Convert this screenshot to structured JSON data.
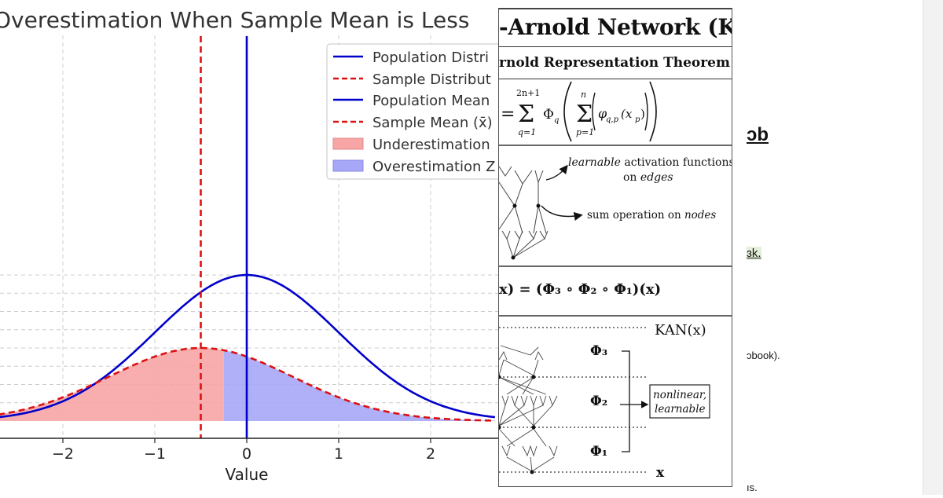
{
  "chart": {
    "title": "Overestimation When Sample Mean is Less",
    "xlabel": "Value",
    "legend": [
      {
        "label": "Population Distri",
        "style": "solid",
        "color": "#0000cc"
      },
      {
        "label": "Sample Distribut",
        "style": "dashed",
        "color": "#dd1111"
      },
      {
        "label": "Population Mean",
        "style": "solid",
        "color": "#0000cc"
      },
      {
        "label": "Sample Mean (x̄)",
        "style": "dashed",
        "color": "#dd1111"
      },
      {
        "label": "Underestimation",
        "style": "patch",
        "color": "#f7a5a5"
      },
      {
        "label": "Overestimation Z",
        "style": "patch",
        "color": "#a7a7f8"
      }
    ]
  },
  "chart_data": {
    "type": "line",
    "title": "Overestimation When Sample Mean is Less",
    "xlabel": "Value",
    "ylabel": "",
    "xticks": [
      -2,
      -1,
      0,
      1,
      2
    ],
    "xlim": [
      -2.7,
      2.7
    ],
    "population_mean": 0,
    "population_sd": 1,
    "sample_mean": -0.5,
    "sample_sd": 1,
    "sample_scale": 0.5,
    "fill_split": -0.25,
    "series": [
      {
        "name": "Population Distribution",
        "style": "solid",
        "color": "#0000cc"
      },
      {
        "name": "Sample Distribution",
        "style": "dashed",
        "color": "#dd1111"
      }
    ],
    "regions": [
      {
        "name": "Underestimation",
        "color": "#f7a5a5"
      },
      {
        "name": "Overestimation Zone",
        "color": "#a7a7f8"
      }
    ]
  },
  "kan": {
    "title": "-Arnold Network (KAN)",
    "subtitle": "rnold Representation Theorem",
    "formula": {
      "eq": "=",
      "outer_sum_top": "2n+1",
      "outer_sum_bottom": "q=1",
      "Phi_q": "Φ",
      "q_sub": "q",
      "inner_sum_top": "n",
      "inner_sum_bottom": "p=1",
      "phi": "φ",
      "phi_sub": "q,p",
      "x_arg": "(x",
      "x_sub": "p",
      "close_arg": ")",
      "sigma": "Σ"
    },
    "ann_edges_line1_em": "learnable",
    "ann_edges_line1_rest": " activation functions",
    "ann_edges_line2_pre": "on ",
    "ann_edges_line2_em": "edges",
    "ann_nodes_pre": "sum operation on ",
    "ann_nodes_em": "nodes",
    "composition": "x) = (Φ₃ ∘ Φ₂ ∘ Φ₁)(x)",
    "kan_output": "KAN(x)",
    "phi3": "Φ₃",
    "phi2": "Φ₂",
    "phi1": "Φ₁",
    "box_line1": "nonlinear,",
    "box_line2": "learnable",
    "x_input": "x"
  },
  "page_fragments": {
    "heading_fragment": "ɔb",
    "link_fragment": "ɜk.",
    "text_fragment1": "ɔbook).",
    "text_fragment2": "ıs."
  }
}
